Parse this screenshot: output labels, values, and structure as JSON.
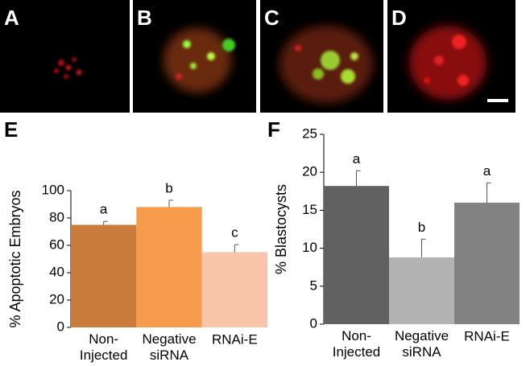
{
  "panels": [
    "A",
    "B",
    "C",
    "D"
  ],
  "chart_data": [
    {
      "type": "bar",
      "label": "E",
      "ylabel": "% Apoptotic Embryos",
      "categories": [
        "Non-\nInjected",
        "Negative\nsiRNA",
        "RNAi-E"
      ],
      "values": [
        75,
        88,
        55
      ],
      "errors": [
        2.5,
        5,
        5.5
      ],
      "annotations": [
        "a",
        "b",
        "c"
      ],
      "colors": [
        "#c97c3b",
        "#f69a4c",
        "#f8c5aa"
      ],
      "ylim": [
        0,
        100
      ],
      "yticks": [
        0,
        20,
        40,
        60,
        80,
        100
      ]
    },
    {
      "type": "bar",
      "label": "F",
      "ylabel": "% Blastocysts",
      "categories": [
        "Non-\nInjected",
        "Negative\nsiRNA",
        "RNAi-E"
      ],
      "values": [
        18.2,
        8.8,
        16
      ],
      "errors": [
        2,
        2.4,
        2.6
      ],
      "annotations": [
        "a",
        "b",
        "a"
      ],
      "colors": [
        "#616161",
        "#b3b3b3",
        "#828282"
      ],
      "ylim": [
        0,
        25
      ],
      "yticks": [
        0,
        5,
        10,
        15,
        20,
        25
      ]
    }
  ]
}
